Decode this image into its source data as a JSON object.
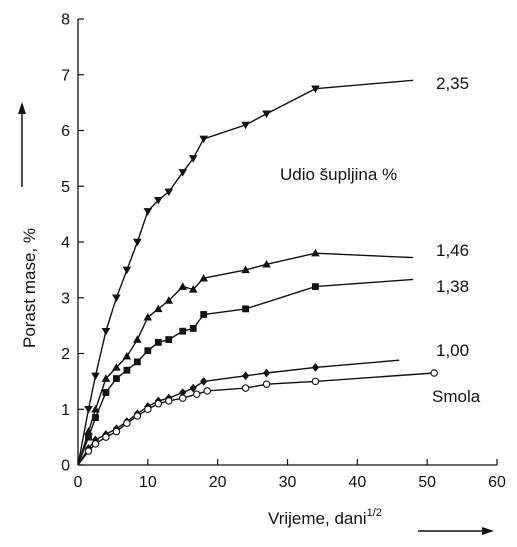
{
  "chart_data": {
    "type": "line",
    "title": "",
    "xlabel": "Vrijeme, dani",
    "xlabel_superscript": "1/2",
    "ylabel": "Porast mase, %",
    "xlim": [
      0,
      60
    ],
    "ylim": [
      0,
      8
    ],
    "x_ticks": [
      0,
      10,
      20,
      30,
      40,
      50,
      60
    ],
    "y_ticks": [
      0,
      1,
      2,
      3,
      4,
      5,
      6,
      7,
      8
    ],
    "grid": false,
    "legend_title": "Udio šupljina %",
    "series": [
      {
        "name": "2,35",
        "marker": "triangle-down",
        "x": [
          0,
          1.5,
          2.5,
          4,
          5.5,
          7,
          8.5,
          10,
          11.5,
          13,
          15,
          16.5,
          18,
          24,
          27,
          34,
          48
        ],
        "y": [
          0,
          1.0,
          1.6,
          2.4,
          3.0,
          3.5,
          4.0,
          4.55,
          4.75,
          4.9,
          5.25,
          5.5,
          5.85,
          6.1,
          6.3,
          6.75,
          6.9
        ]
      },
      {
        "name": "1,46",
        "marker": "triangle-up",
        "x": [
          0,
          1.5,
          2.5,
          4,
          5.5,
          7,
          8.5,
          10,
          11.5,
          13,
          15,
          16.5,
          18,
          24,
          27,
          34,
          48
        ],
        "y": [
          0,
          0.6,
          1.0,
          1.55,
          1.75,
          1.95,
          2.25,
          2.65,
          2.8,
          2.95,
          3.2,
          3.15,
          3.35,
          3.5,
          3.6,
          3.8,
          3.72
        ]
      },
      {
        "name": "1,38",
        "marker": "square",
        "x": [
          0,
          1.5,
          2.5,
          4,
          5.5,
          7,
          8.5,
          10,
          11.5,
          13,
          15,
          16.5,
          18,
          24,
          34,
          48
        ],
        "y": [
          0,
          0.5,
          0.85,
          1.3,
          1.55,
          1.7,
          1.85,
          2.05,
          2.2,
          2.25,
          2.4,
          2.45,
          2.7,
          2.8,
          3.2,
          3.33
        ]
      },
      {
        "name": "1,00",
        "marker": "diamond",
        "x": [
          0,
          1.5,
          2.5,
          4,
          5.5,
          7,
          8.5,
          10,
          11.5,
          13,
          15,
          16.5,
          18,
          24,
          27,
          34,
          46
        ],
        "y": [
          0,
          0.3,
          0.45,
          0.55,
          0.65,
          0.78,
          0.92,
          1.05,
          1.15,
          1.2,
          1.3,
          1.38,
          1.5,
          1.6,
          1.65,
          1.75,
          1.88
        ]
      },
      {
        "name": "Smola",
        "marker": "circle-open",
        "x": [
          0,
          1.5,
          2.5,
          4,
          5.5,
          7,
          8.5,
          10,
          11.5,
          13,
          15,
          17,
          18.5,
          24,
          27,
          34,
          51
        ],
        "y": [
          0,
          0.25,
          0.38,
          0.5,
          0.6,
          0.75,
          0.88,
          1.0,
          1.1,
          1.15,
          1.2,
          1.27,
          1.33,
          1.38,
          1.45,
          1.5,
          1.65
        ]
      }
    ]
  }
}
